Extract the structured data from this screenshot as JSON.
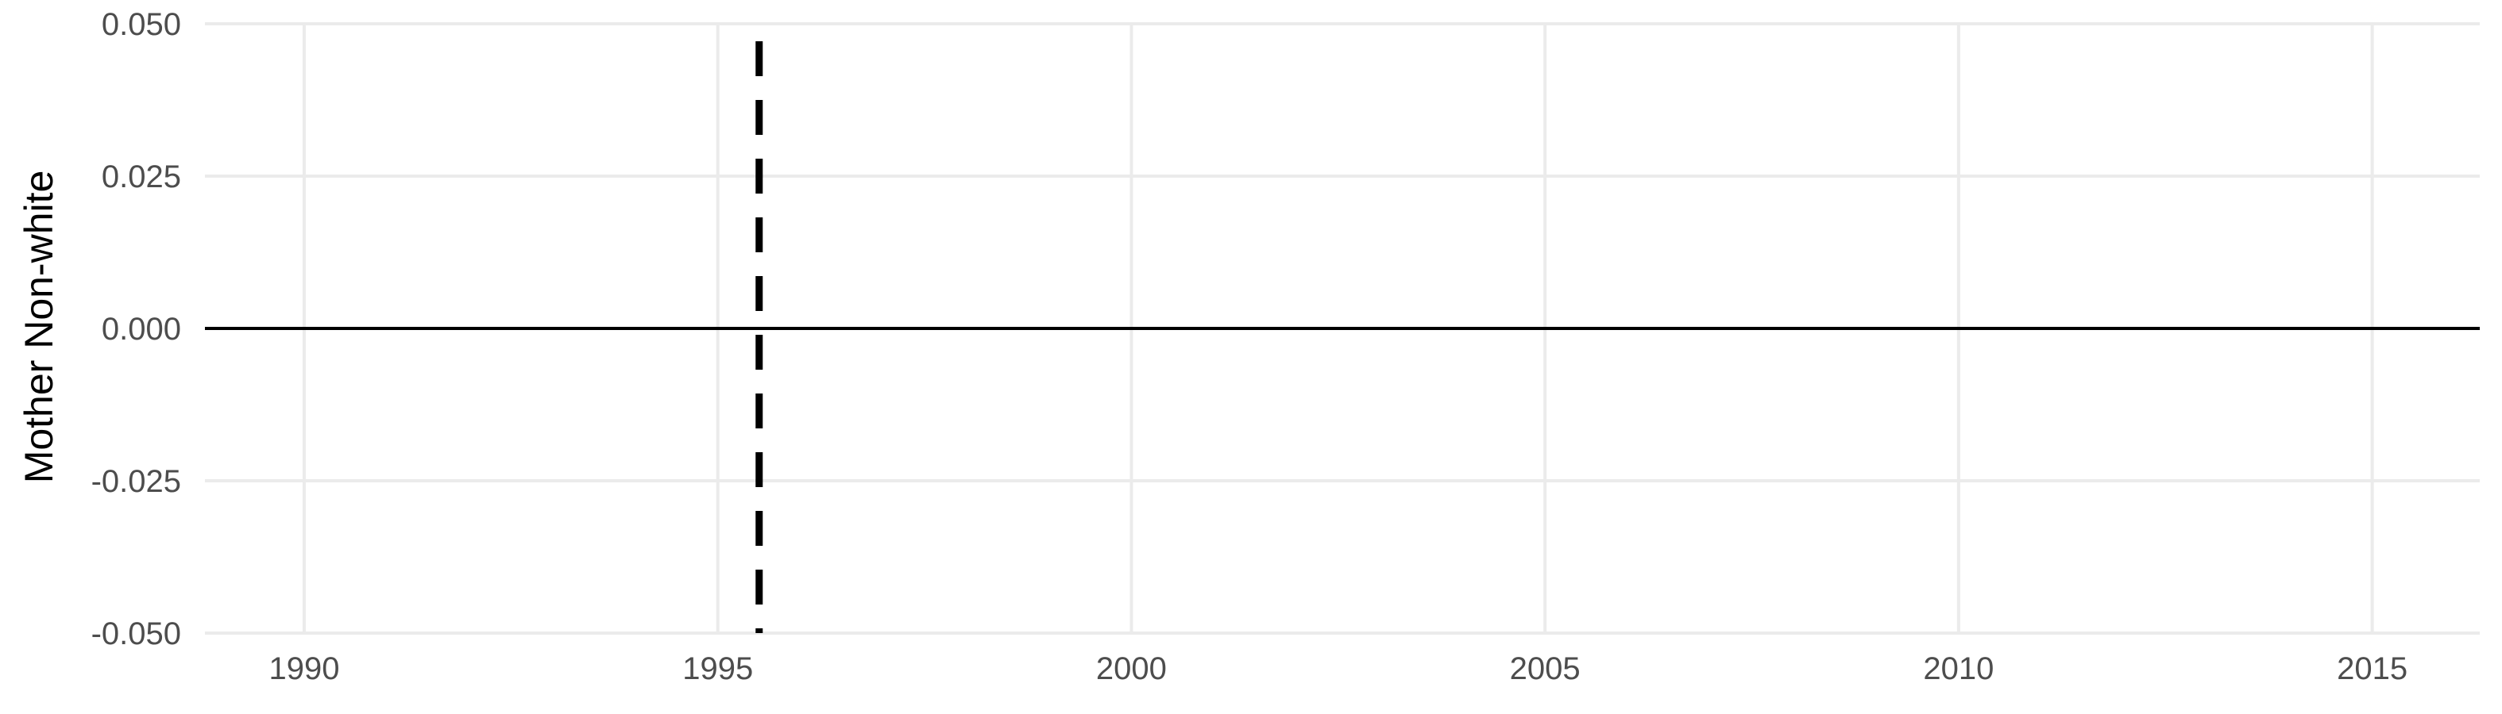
{
  "chart_data": {
    "type": "line",
    "title": "",
    "xlabel": "",
    "ylabel": "Mother Non-white",
    "xlim": [
      1988.8,
      2016.3
    ],
    "ylim": [
      -0.05,
      0.05
    ],
    "x_ticks": [
      1990,
      1995,
      2000,
      2005,
      2010,
      2015
    ],
    "y_ticks": [
      -0.05,
      -0.025,
      0,
      0.025,
      0.05
    ],
    "x_tick_labels": [
      "1990",
      "1995",
      "2000",
      "2005",
      "2010",
      "2015"
    ],
    "y_tick_labels": [
      "-0.050",
      "-0.025",
      "0.000",
      "0.025",
      "0.050"
    ],
    "reference_lines": [
      {
        "orientation": "horizontal",
        "value": 0,
        "style": "solid",
        "color": "#000000"
      },
      {
        "orientation": "vertical",
        "value": 1995.5,
        "style": "dashed",
        "color": "#000000"
      }
    ],
    "series": [],
    "grid": true,
    "legend": "none"
  }
}
